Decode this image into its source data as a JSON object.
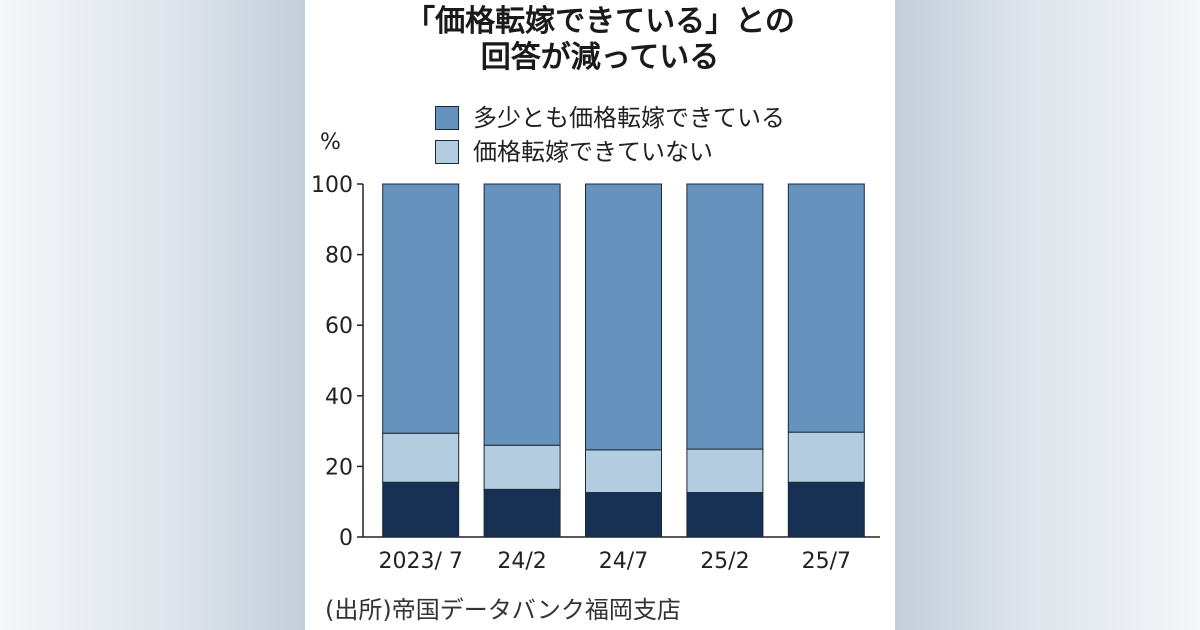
{
  "chart_data": {
    "type": "bar",
    "stacked": true,
    "title": "「価格転嫁できている」との\n回答が減っている",
    "title_lines": [
      "「価格転嫁できている」との",
      "回答が減っている"
    ],
    "unit_label": "%",
    "categories": [
      "2023/ 7",
      "24/2",
      "24/7",
      "25/2",
      "25/7"
    ],
    "ylim": [
      0,
      100
    ],
    "yticks": [
      0,
      20,
      40,
      60,
      80,
      100
    ],
    "legend_position": "top",
    "series": [
      {
        "name": "",
        "color": "#173154",
        "values": [
          15.5,
          13.5,
          12.6,
          12.6,
          15.5
        ]
      },
      {
        "name": "価格転嫁できていない",
        "color": "#b4cce0",
        "values": [
          13.9,
          12.5,
          12.1,
          12.3,
          14.2
        ]
      },
      {
        "name": "多少とも価格転嫁できている",
        "color": "#6593be",
        "values": [
          70.6,
          74.0,
          75.3,
          75.1,
          70.3
        ]
      }
    ],
    "legend": [
      {
        "label": "多少とも価格転嫁できている",
        "color": "#6593be"
      },
      {
        "label": "価格転嫁できていない",
        "color": "#b4cce0"
      }
    ],
    "source": "(出所)帝国データバンク福岡支店"
  }
}
